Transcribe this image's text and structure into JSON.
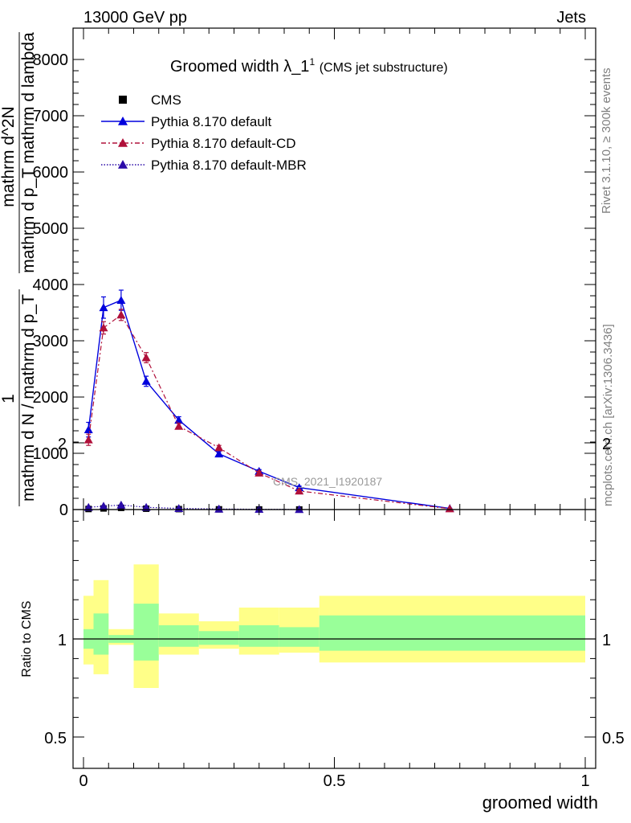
{
  "header": {
    "left": "13000 GeV pp",
    "right": "Jets"
  },
  "side": {
    "rivet": "Rivet 3.1.10, ≥ 300k events",
    "mcplots": "mcplots.cern.ch [arXiv:1306.3436]"
  },
  "watermark": "CMS_2021_I1920187",
  "chart_data": [
    {
      "type": "line",
      "title_main": "Groomed width",
      "title_symbol": "λ_1",
      "title_sup": "1",
      "title_note": "(CMS jet substructure)",
      "ylabel_num": "1",
      "ylabel_den": "mathrm d N / mathrm d p_T",
      "ylabel_right_num": "mathrm d^2N",
      "ylabel_right_den": "mathrm d p_T mathrm d lambda",
      "xlim": [
        0,
        1
      ],
      "ylim": [
        0,
        8500
      ],
      "y_ticks": [
        {
          "value": 0,
          "label": "0"
        },
        {
          "value": 1000,
          "label": "1000"
        },
        {
          "value": 2000,
          "label": "2000"
        },
        {
          "value": 3000,
          "label": "3000"
        },
        {
          "value": 4000,
          "label": "4000"
        },
        {
          "value": 5000,
          "label": "5000"
        },
        {
          "value": 6000,
          "label": "6000"
        },
        {
          "value": 7000,
          "label": "7000"
        },
        {
          "value": 8000,
          "label": "8000"
        }
      ],
      "legend": [
        {
          "label": "CMS",
          "marker": "square",
          "color": "#000000",
          "dash": ""
        },
        {
          "label": "Pythia 8.170 default",
          "marker": "triangle",
          "color": "#0000dd",
          "dash": ""
        },
        {
          "label": "Pythia 8.170 default-CD",
          "marker": "triangle",
          "color": "#b0103a",
          "dash": "6,3,2,3"
        },
        {
          "label": "Pythia 8.170 default-MBR",
          "marker": "triangle",
          "color": "#2a0aa8",
          "dash": "1.5,2"
        }
      ],
      "series": [
        {
          "name": "CMS",
          "x": [
            0.01,
            0.04,
            0.075,
            0.125,
            0.19,
            0.27,
            0.35,
            0.43
          ],
          "values": [
            10,
            20,
            30,
            15,
            8,
            4,
            2,
            1
          ],
          "color": "#000000"
        },
        {
          "name": "Pythia 8.170 default",
          "x": [
            0.01,
            0.04,
            0.075,
            0.125,
            0.19,
            0.27,
            0.35,
            0.43,
            0.73
          ],
          "values": [
            1420,
            3590,
            3720,
            2280,
            1590,
            990,
            680,
            390,
            20
          ],
          "errors": [
            130,
            190,
            180,
            90,
            60,
            40,
            30,
            25,
            5
          ],
          "color": "#0000dd"
        },
        {
          "name": "Pythia 8.170 default-CD",
          "x": [
            0.01,
            0.04,
            0.075,
            0.125,
            0.19,
            0.27,
            0.35,
            0.43,
            0.73
          ],
          "values": [
            1240,
            3230,
            3460,
            2700,
            1480,
            1100,
            650,
            330,
            15
          ],
          "errors": [
            100,
            110,
            100,
            90,
            50,
            40,
            30,
            20,
            5
          ],
          "color": "#b0103a"
        },
        {
          "name": "Pythia 8.170 default-MBR",
          "x": [
            0.01,
            0.04,
            0.075,
            0.125,
            0.19,
            0.27,
            0.35,
            0.43
          ],
          "values": [
            40,
            60,
            80,
            40,
            20,
            10,
            5,
            2
          ],
          "color": "#2a0aa8"
        }
      ]
    },
    {
      "type": "area",
      "ylabel": "Ratio to CMS",
      "xlabel": "groomed width",
      "xlim": [
        0,
        1
      ],
      "ylim": [
        0.4,
        2.4
      ],
      "y_ticks": [
        {
          "value": 0.5,
          "label": "0.5"
        },
        {
          "value": 1,
          "label": "1"
        },
        {
          "value": 2,
          "label": "2"
        }
      ],
      "x_ticks": [
        {
          "value": 0,
          "label": "0"
        },
        {
          "value": 0.5,
          "label": "0.5"
        },
        {
          "value": 1,
          "label": "1"
        }
      ],
      "bands": [
        {
          "x0": 0.0,
          "x1": 0.02,
          "stat": [
            0.95,
            1.05
          ],
          "total": [
            0.87,
            1.22
          ]
        },
        {
          "x0": 0.02,
          "x1": 0.05,
          "stat": [
            0.92,
            1.13
          ],
          "total": [
            0.82,
            1.3
          ]
        },
        {
          "x0": 0.05,
          "x1": 0.1,
          "stat": [
            0.98,
            1.02
          ],
          "total": [
            0.97,
            1.05
          ]
        },
        {
          "x0": 0.1,
          "x1": 0.15,
          "stat": [
            0.89,
            1.18
          ],
          "total": [
            0.75,
            1.38
          ]
        },
        {
          "x0": 0.15,
          "x1": 0.23,
          "stat": [
            0.96,
            1.07
          ],
          "total": [
            0.92,
            1.13
          ]
        },
        {
          "x0": 0.23,
          "x1": 0.31,
          "stat": [
            0.97,
            1.04
          ],
          "total": [
            0.95,
            1.09
          ]
        },
        {
          "x0": 0.31,
          "x1": 0.39,
          "stat": [
            0.96,
            1.07
          ],
          "total": [
            0.92,
            1.16
          ]
        },
        {
          "x0": 0.39,
          "x1": 0.47,
          "stat": [
            0.96,
            1.06
          ],
          "total": [
            0.93,
            1.16
          ]
        },
        {
          "x0": 0.47,
          "x1": 1.0,
          "stat": [
            0.94,
            1.12
          ],
          "total": [
            0.88,
            1.22
          ]
        }
      ],
      "stat_color": "#99ff99",
      "total_color": "#ffff88"
    }
  ]
}
